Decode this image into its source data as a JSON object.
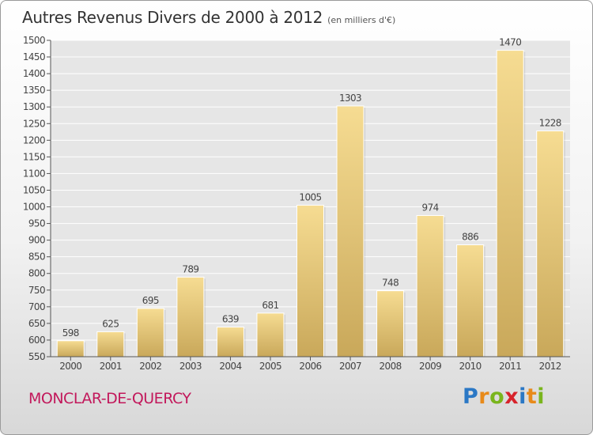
{
  "header": {
    "title": "Autres Revenus Divers de 2000 à 2012",
    "subtitle": "(en milliers d'€)"
  },
  "footer": {
    "city": "MONCLAR-DE-QUERCY",
    "brand_letters": [
      "P",
      "r",
      "o",
      "x",
      "i",
      "t",
      "i"
    ],
    "brand_colors": [
      "#2b78c5",
      "#e88a1a",
      "#7ab51d",
      "#d7232b",
      "#2b78c5",
      "#e88a1a",
      "#7ab51d"
    ]
  },
  "chart_data": {
    "type": "bar",
    "title": "Autres Revenus Divers de 2000 à 2012",
    "subtitle": "(en milliers d'€)",
    "categories": [
      "2000",
      "2001",
      "2002",
      "2003",
      "2004",
      "2005",
      "2006",
      "2007",
      "2008",
      "2009",
      "2010",
      "2011",
      "2012"
    ],
    "values": [
      598,
      625,
      695,
      789,
      639,
      681,
      1005,
      1303,
      748,
      974,
      886,
      1470,
      1228
    ],
    "ylim": [
      550,
      1500
    ],
    "yticks": [
      550,
      600,
      650,
      700,
      750,
      800,
      850,
      900,
      950,
      1000,
      1050,
      1100,
      1150,
      1200,
      1250,
      1300,
      1350,
      1400,
      1450,
      1500
    ],
    "grid": true,
    "bar_color": "#e8cc7e"
  }
}
